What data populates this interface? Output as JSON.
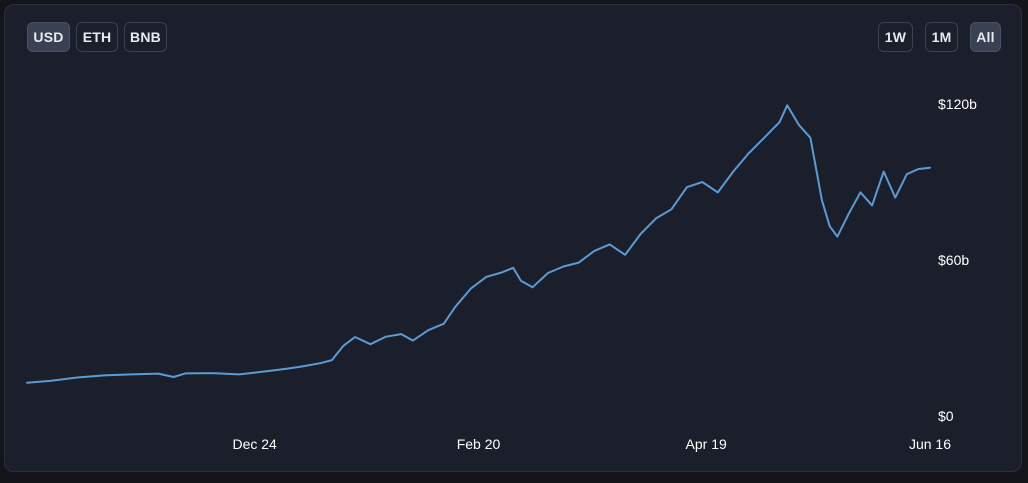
{
  "currency_tabs": [
    {
      "label": "USD",
      "active": true
    },
    {
      "label": "ETH",
      "active": false
    },
    {
      "label": "BNB",
      "active": false
    }
  ],
  "range_tabs": [
    {
      "label": "1W",
      "active": false
    },
    {
      "label": "1M",
      "active": false
    },
    {
      "label": "All",
      "active": true
    }
  ],
  "colors": {
    "line": "#5b9bd5",
    "background": "#1b1e2b",
    "accent_active": "#3a4152"
  },
  "chart_data": {
    "type": "line",
    "title": "",
    "xlabel": "",
    "ylabel": "",
    "x_ticks": [
      {
        "label": "Dec 24",
        "date": "2023-12-24"
      },
      {
        "label": "Feb 20",
        "date": "2024-02-20"
      },
      {
        "label": "Apr 19",
        "date": "2024-04-19"
      },
      {
        "label": "Jun 16",
        "date": "2024-06-16"
      }
    ],
    "y_ticks": [
      {
        "label": "$0",
        "value": 0
      },
      {
        "label": "$60b",
        "value": 60
      },
      {
        "label": "$120b",
        "value": 120
      }
    ],
    "ylim": [
      0,
      120
    ],
    "xlim": [
      "2023-10-26",
      "2024-06-16"
    ],
    "grid": false,
    "legend": "none",
    "series": [
      {
        "unit": "USD billions",
        "points": [
          [
            "2023-10-26",
            12.8
          ],
          [
            "2023-11-01",
            13.5
          ],
          [
            "2023-11-08",
            14.8
          ],
          [
            "2023-11-15",
            15.6
          ],
          [
            "2023-11-22",
            16.0
          ],
          [
            "2023-11-29",
            16.3
          ],
          [
            "2023-12-03",
            15.0
          ],
          [
            "2023-12-06",
            16.4
          ],
          [
            "2023-12-13",
            16.5
          ],
          [
            "2023-12-20",
            16.0
          ],
          [
            "2023-12-27",
            17.2
          ],
          [
            "2024-01-01",
            18.1
          ],
          [
            "2024-01-05",
            19.0
          ],
          [
            "2024-01-10",
            20.3
          ],
          [
            "2024-01-13",
            21.5
          ],
          [
            "2024-01-16",
            27.0
          ],
          [
            "2024-01-19",
            30.4
          ],
          [
            "2024-01-23",
            27.6
          ],
          [
            "2024-01-27",
            30.5
          ],
          [
            "2024-01-31",
            31.5
          ],
          [
            "2024-02-03",
            29.0
          ],
          [
            "2024-02-07",
            33.0
          ],
          [
            "2024-02-11",
            35.5
          ],
          [
            "2024-02-14",
            42.0
          ],
          [
            "2024-02-18",
            49.0
          ],
          [
            "2024-02-22",
            53.5
          ],
          [
            "2024-02-26",
            55.2
          ],
          [
            "2024-02-29",
            57.0
          ],
          [
            "2024-03-02",
            52.0
          ],
          [
            "2024-03-05",
            49.5
          ],
          [
            "2024-03-09",
            55.0
          ],
          [
            "2024-03-13",
            57.5
          ],
          [
            "2024-03-17",
            59.0
          ],
          [
            "2024-03-21",
            63.5
          ],
          [
            "2024-03-25",
            66.0
          ],
          [
            "2024-03-29",
            62.0
          ],
          [
            "2024-04-02",
            70.0
          ],
          [
            "2024-04-06",
            76.0
          ],
          [
            "2024-04-10",
            79.5
          ],
          [
            "2024-04-14",
            88.0
          ],
          [
            "2024-04-18",
            90.0
          ],
          [
            "2024-04-22",
            86.0
          ],
          [
            "2024-04-26",
            94.0
          ],
          [
            "2024-04-30",
            101.0
          ],
          [
            "2024-05-04",
            107.0
          ],
          [
            "2024-05-08",
            113.0
          ],
          [
            "2024-05-10",
            119.5
          ],
          [
            "2024-05-13",
            112.0
          ],
          [
            "2024-05-16",
            107.0
          ],
          [
            "2024-05-19",
            83.0
          ],
          [
            "2024-05-21",
            73.0
          ],
          [
            "2024-05-23",
            69.0
          ],
          [
            "2024-05-26",
            78.0
          ],
          [
            "2024-05-29",
            86.0
          ],
          [
            "2024-06-01",
            81.0
          ],
          [
            "2024-06-04",
            94.0
          ],
          [
            "2024-06-07",
            84.0
          ],
          [
            "2024-06-10",
            93.0
          ],
          [
            "2024-06-13",
            95.0
          ],
          [
            "2024-06-16",
            95.5
          ]
        ]
      }
    ]
  }
}
